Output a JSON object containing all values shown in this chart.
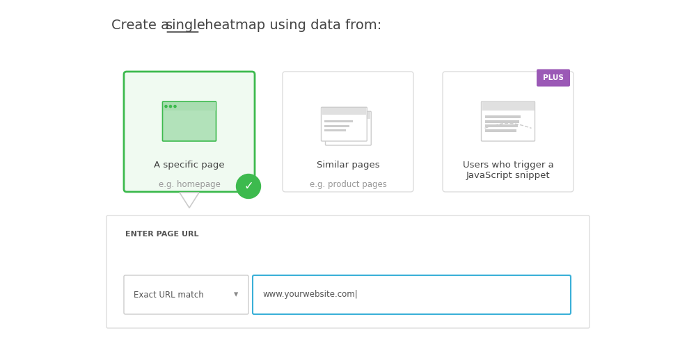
{
  "background_color": "#ffffff",
  "title_text": "Create a ",
  "title_single": "single",
  "title_rest": " heatmap using data from:",
  "title_fontsize": 14,
  "title_color": "#444444",
  "card1_label": "A specific page",
  "card1_sublabel": "e.g. homepage",
  "card2_label": "Similar pages",
  "card2_sublabel": "e.g. product pages",
  "card3_label": "Users who trigger a\nJavaScript snippet",
  "card3_sublabel": "",
  "plus_label": "PLUS",
  "plus_bg": "#9b59b6",
  "plus_text": "#ffffff",
  "card_border_default": "#dddddd",
  "card_border_selected": "#3dba4e",
  "card_bg_selected": "#f0faf1",
  "card_bg_default": "#ffffff",
  "check_color": "#3dba4e",
  "dropdown_label": "Exact URL match",
  "input_placeholder": "www.yourwebsite.com|",
  "input_border_color": "#3ab0d8",
  "dropdown_border_color": "#cccccc",
  "section_label": "ENTER PAGE URL",
  "section_label_color": "#555555",
  "section_bg": "#f9f9f9",
  "section_border": "#dddddd",
  "icon_color": "#cccccc",
  "icon_selected_color": "#b2e2ba",
  "icon_selected_border": "#3dba4e",
  "icon_bar_selected": "#a8ddb0",
  "icon_bar_default": "#e0e0e0"
}
